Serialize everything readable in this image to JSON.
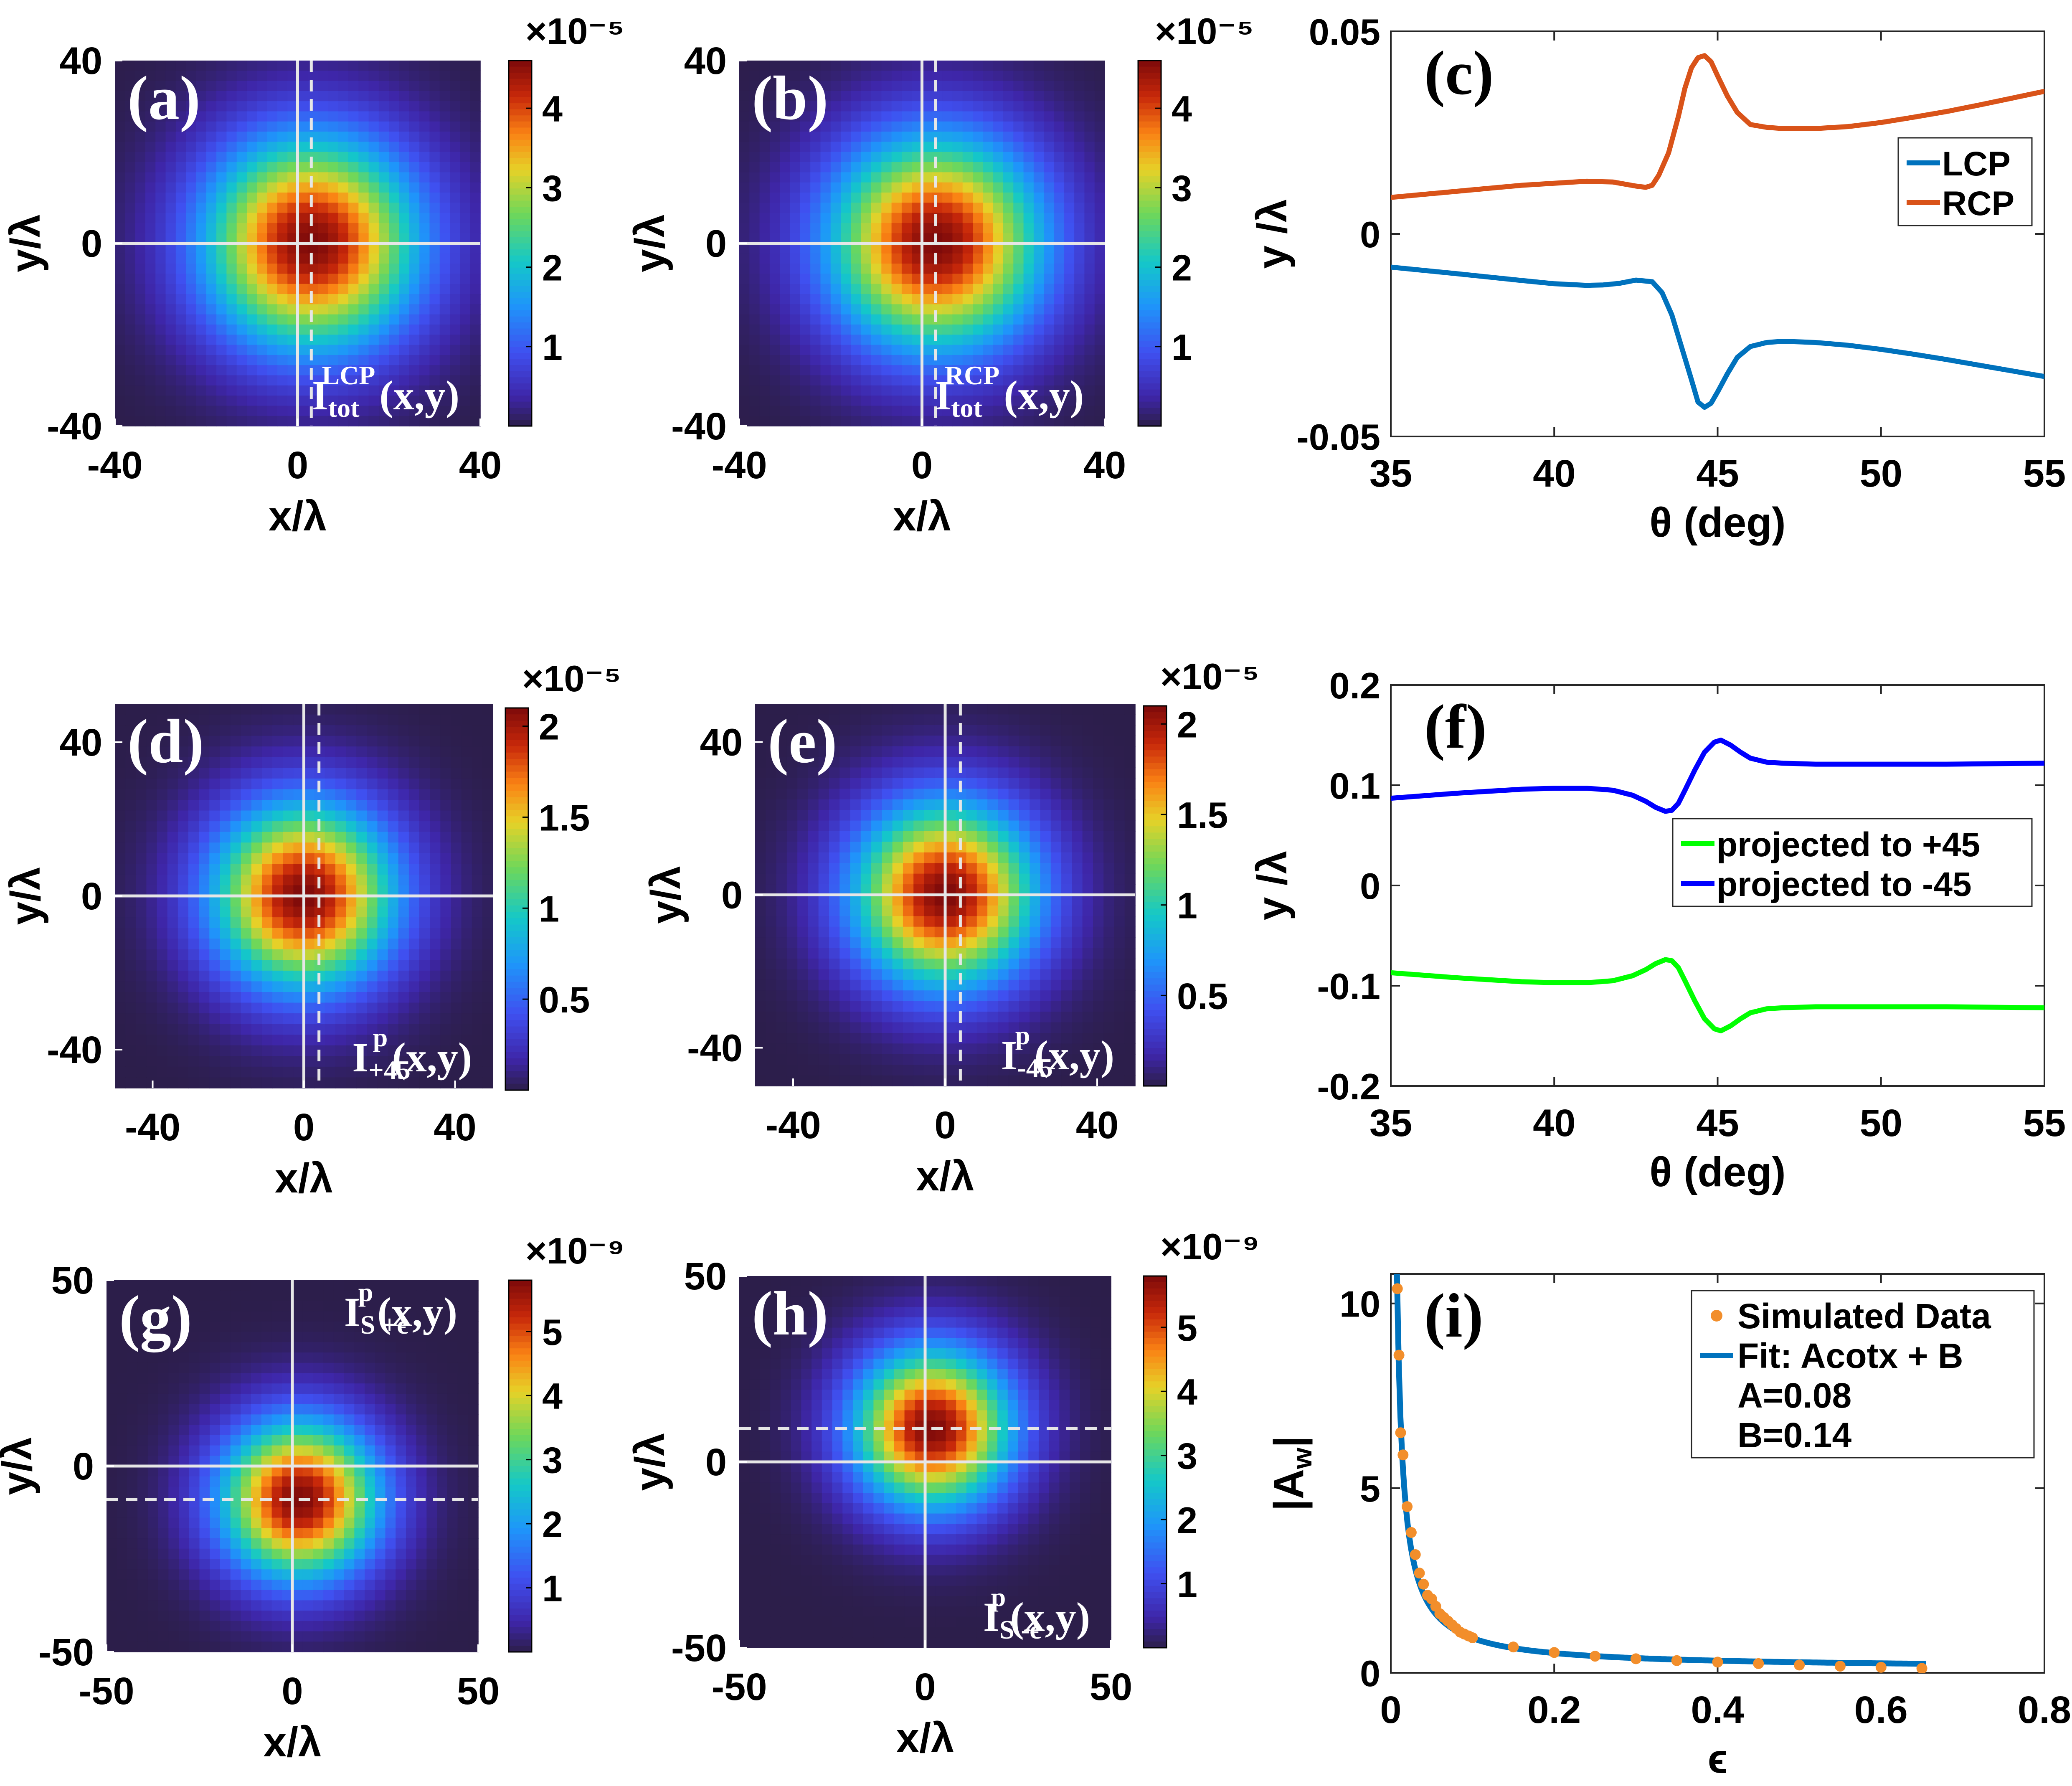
{
  "figure_title": "Nine-panel figure: beam intensity maps, spin Hall shifts and weak amplification factor",
  "colors": {
    "lcp": "#0072BD",
    "rcp": "#D95319",
    "plus45": "#00FF00",
    "minus45": "#0000FF",
    "sim_points": "#F28E2B",
    "fit": "#0072BD",
    "crosshair": "#E6E6E6"
  },
  "chart_data": [
    {
      "id": "a",
      "type": "heatmap",
      "panel_label": "(a)",
      "inset_label": {
        "main": "I",
        "sup": "LCP",
        "sub": "tot",
        "tail": "(x,y)"
      },
      "xlabel": "x/λ",
      "ylabel": "y/λ",
      "xlim": [
        -40,
        40
      ],
      "ylim": [
        -40,
        40
      ],
      "xticks": [
        "-40",
        "0",
        "40"
      ],
      "yticks": [
        "-40",
        "0",
        "40"
      ],
      "beam_center": [
        3,
        0
      ],
      "beam_sigma": 16.5,
      "reference_lines": {
        "solid_vertical": 0,
        "dashed_vertical": 3,
        "solid_horizontal": 0
      },
      "colorbar": {
        "exponent": "×10⁻⁵",
        "ticks": [
          "1",
          "2",
          "3",
          "4"
        ],
        "max": 4.6
      }
    },
    {
      "id": "b",
      "type": "heatmap",
      "panel_label": "(b)",
      "inset_label": {
        "main": "I",
        "sup": "RCP",
        "sub": "tot",
        "tail": "(x,y)"
      },
      "xlabel": "x/λ",
      "ylabel": "y/λ",
      "xlim": [
        -40,
        40
      ],
      "ylim": [
        -40,
        40
      ],
      "xticks": [
        "-40",
        "0",
        "40"
      ],
      "yticks": [
        "-40",
        "0",
        "40"
      ],
      "beam_center": [
        3,
        0
      ],
      "beam_sigma": 16.5,
      "reference_lines": {
        "solid_vertical": 0,
        "dashed_vertical": 3,
        "solid_horizontal": 0
      },
      "colorbar": {
        "exponent": "×10⁻⁵",
        "ticks": [
          "1",
          "2",
          "3",
          "4"
        ],
        "max": 4.6
      }
    },
    {
      "id": "c",
      "type": "line",
      "panel_label": "(c)",
      "xlabel": "θ (deg)",
      "ylabel": "y /λ",
      "xlim": [
        35,
        55
      ],
      "ylim": [
        -0.05,
        0.05
      ],
      "xticks": [
        "35",
        "40",
        "45",
        "50",
        "55"
      ],
      "yticks": [
        "-0.05",
        "0",
        "0.05"
      ],
      "legend": [
        "LCP",
        "RCP"
      ],
      "series": [
        {
          "name": "RCP",
          "x": [
            35,
            37,
            39,
            40,
            41,
            41.8,
            42.5,
            42.8,
            43,
            43.2,
            43.5,
            43.8,
            44,
            44.2,
            44.4,
            44.6,
            44.8,
            45,
            45.3,
            45.6,
            46,
            46.5,
            47,
            48,
            49,
            50,
            51,
            52,
            53,
            54,
            55
          ],
          "y": [
            0.009,
            0.0105,
            0.012,
            0.0125,
            0.013,
            0.0128,
            0.0118,
            0.0115,
            0.012,
            0.0145,
            0.02,
            0.029,
            0.036,
            0.041,
            0.0435,
            0.044,
            0.0425,
            0.039,
            0.034,
            0.03,
            0.027,
            0.0263,
            0.026,
            0.026,
            0.0265,
            0.0275,
            0.0288,
            0.0302,
            0.0318,
            0.0335,
            0.0352
          ]
        },
        {
          "name": "LCP",
          "x": [
            35,
            37,
            39,
            40,
            41,
            41.5,
            42,
            42.5,
            43,
            43.3,
            43.6,
            43.9,
            44.2,
            44.4,
            44.6,
            44.8,
            45,
            45.3,
            45.6,
            46,
            46.5,
            47,
            48,
            49,
            50,
            51,
            52,
            53,
            54,
            55
          ],
          "y": [
            -0.0082,
            -0.0098,
            -0.0115,
            -0.0123,
            -0.0127,
            -0.0126,
            -0.0122,
            -0.0114,
            -0.0118,
            -0.0145,
            -0.02,
            -0.028,
            -0.036,
            -0.0415,
            -0.0428,
            -0.0418,
            -0.039,
            -0.0345,
            -0.0305,
            -0.0278,
            -0.0268,
            -0.0265,
            -0.0268,
            -0.0275,
            -0.0285,
            -0.0297,
            -0.031,
            -0.0324,
            -0.0338,
            -0.0352
          ]
        }
      ]
    },
    {
      "id": "d",
      "type": "heatmap",
      "panel_label": "(d)",
      "inset_label": {
        "main": "I",
        "sup": "p",
        "sub": "+45",
        "tail": "(x,y)"
      },
      "xlabel": "x/λ",
      "ylabel": "y/λ",
      "xlim": [
        -50,
        50
      ],
      "ylim": [
        -50,
        50
      ],
      "xticks": [
        "-40",
        "0",
        "40"
      ],
      "yticks": [
        "-40",
        "0",
        "40"
      ],
      "beam_center": [
        0,
        0
      ],
      "beam_sigma": 17,
      "reference_lines": {
        "solid_vertical": 0,
        "dashed_vertical": 4,
        "solid_horizontal": 0
      },
      "colorbar": {
        "exponent": "×10⁻⁵",
        "ticks": [
          "0.5",
          "1",
          "1.5",
          "2"
        ],
        "max": 2.1
      }
    },
    {
      "id": "e",
      "type": "heatmap",
      "panel_label": "(e)",
      "inset_label": {
        "main": "I",
        "sup": "p",
        "sub": "-45",
        "tail": "(x,y)"
      },
      "xlabel": "x/λ",
      "ylabel": "y/λ",
      "xlim": [
        -50,
        50
      ],
      "ylim": [
        -50,
        50
      ],
      "xticks": [
        "-40",
        "0",
        "40"
      ],
      "yticks": [
        "-40",
        "0",
        "40"
      ],
      "beam_center": [
        0,
        0
      ],
      "beam_sigma": 17,
      "reference_lines": {
        "solid_vertical": 0,
        "dashed_vertical": 4,
        "solid_horizontal": 0
      },
      "colorbar": {
        "exponent": "×10⁻⁵",
        "ticks": [
          "0.5",
          "1",
          "1.5",
          "2"
        ],
        "max": 2.1
      }
    },
    {
      "id": "f",
      "type": "line",
      "panel_label": "(f)",
      "xlabel": "θ (deg)",
      "ylabel": "y /λ",
      "xlim": [
        35,
        55
      ],
      "ylim": [
        -0.2,
        0.2
      ],
      "xticks": [
        "35",
        "40",
        "45",
        "50",
        "55"
      ],
      "yticks": [
        "-0.2",
        "-0.1",
        "0",
        "0.1",
        "0.2"
      ],
      "legend": [
        "projected to +45",
        "projected to -45"
      ],
      "series": [
        {
          "name": "projected to -45",
          "x": [
            35,
            37,
            39,
            40,
            41,
            41.8,
            42.4,
            42.8,
            43.1,
            43.4,
            43.6,
            43.8,
            44,
            44.3,
            44.6,
            44.9,
            45.1,
            45.4,
            45.7,
            46,
            46.5,
            47,
            48,
            50,
            52,
            55
          ],
          "y": [
            0.087,
            0.092,
            0.096,
            0.097,
            0.097,
            0.095,
            0.09,
            0.084,
            0.078,
            0.074,
            0.075,
            0.082,
            0.095,
            0.115,
            0.133,
            0.143,
            0.145,
            0.14,
            0.133,
            0.127,
            0.123,
            0.122,
            0.121,
            0.121,
            0.121,
            0.122
          ]
        },
        {
          "name": "projected to +45",
          "x": [
            35,
            37,
            39,
            40,
            41,
            41.8,
            42.4,
            42.8,
            43.1,
            43.4,
            43.6,
            43.8,
            44,
            44.3,
            44.6,
            44.9,
            45.1,
            45.4,
            45.7,
            46,
            46.5,
            47,
            48,
            50,
            52,
            55
          ],
          "y": [
            -0.087,
            -0.092,
            -0.096,
            -0.097,
            -0.097,
            -0.095,
            -0.09,
            -0.084,
            -0.078,
            -0.074,
            -0.075,
            -0.082,
            -0.095,
            -0.115,
            -0.133,
            -0.143,
            -0.145,
            -0.14,
            -0.133,
            -0.127,
            -0.123,
            -0.122,
            -0.121,
            -0.121,
            -0.121,
            -0.122
          ]
        }
      ]
    },
    {
      "id": "g",
      "type": "heatmap",
      "panel_label": "(g)",
      "inset_label": {
        "main": "I",
        "sup": "p",
        "sub": "S +ϵ",
        "tail": "(x,y)"
      },
      "xlabel": "x/λ",
      "ylabel": "y/λ",
      "xlim": [
        -50,
        50
      ],
      "ylim": [
        -50,
        50
      ],
      "xticks": [
        "-50",
        "0",
        "50"
      ],
      "yticks": [
        "-50",
        "0",
        "50"
      ],
      "beam_center": [
        2,
        -9
      ],
      "beam_sigma": 15,
      "reference_lines": {
        "solid_vertical": 0,
        "solid_horizontal": 0,
        "dashed_horizontal": -9
      },
      "colorbar": {
        "exponent": "×10⁻⁹",
        "ticks": [
          "1",
          "2",
          "3",
          "4",
          "5"
        ],
        "max": 5.8
      }
    },
    {
      "id": "h",
      "type": "heatmap",
      "panel_label": "(h)",
      "inset_label": {
        "main": "I",
        "sup": "p",
        "sub": "S -ϵ",
        "tail": "(x,y)"
      },
      "xlabel": "x/λ",
      "ylabel": "y/λ",
      "xlim": [
        -50,
        50
      ],
      "ylim": [
        -50,
        50
      ],
      "xticks": [
        "-50",
        "0",
        "50"
      ],
      "yticks": [
        "-50",
        "0",
        "50"
      ],
      "beam_center": [
        2,
        9
      ],
      "beam_sigma": 15,
      "reference_lines": {
        "solid_vertical": 0,
        "solid_horizontal": 0,
        "dashed_horizontal": 9
      },
      "colorbar": {
        "exponent": "×10⁻⁹",
        "ticks": [
          "1",
          "2",
          "3",
          "4",
          "5"
        ],
        "max": 5.8
      }
    },
    {
      "id": "i",
      "type": "scatter",
      "panel_label": "(i)",
      "xlabel": "ϵ",
      "ylabel": "|A",
      "ylabel_sub": "w",
      "ylabel_tail": "|",
      "xlim": [
        0,
        0.8
      ],
      "ylim": [
        0,
        10.8
      ],
      "xticks": [
        "0",
        "0.2",
        "0.4",
        "0.6",
        "0.8"
      ],
      "yticks": [
        "0",
        "5",
        "10"
      ],
      "legend": [
        "Simulated Data",
        "Fit: Acotx + B",
        "A=0.08",
        "B=0.14"
      ],
      "fit_params": {
        "A": 0.08,
        "B": 0.14
      },
      "simulated": {
        "x": [
          0.008,
          0.01,
          0.012,
          0.015,
          0.02,
          0.025,
          0.03,
          0.035,
          0.04,
          0.045,
          0.05,
          0.055,
          0.06,
          0.065,
          0.07,
          0.075,
          0.08,
          0.085,
          0.09,
          0.095,
          0.1,
          0.15,
          0.2,
          0.25,
          0.3,
          0.35,
          0.4,
          0.45,
          0.5,
          0.55,
          0.6,
          0.65
        ],
        "y": [
          10.4,
          8.6,
          6.5,
          5.9,
          4.5,
          3.8,
          3.2,
          2.7,
          2.4,
          2.1,
          2.0,
          1.8,
          1.6,
          1.5,
          1.4,
          1.3,
          1.2,
          1.1,
          1.05,
          1.0,
          0.95,
          0.7,
          0.55,
          0.45,
          0.38,
          0.33,
          0.29,
          0.25,
          0.21,
          0.18,
          0.15,
          0.12
        ]
      }
    }
  ]
}
